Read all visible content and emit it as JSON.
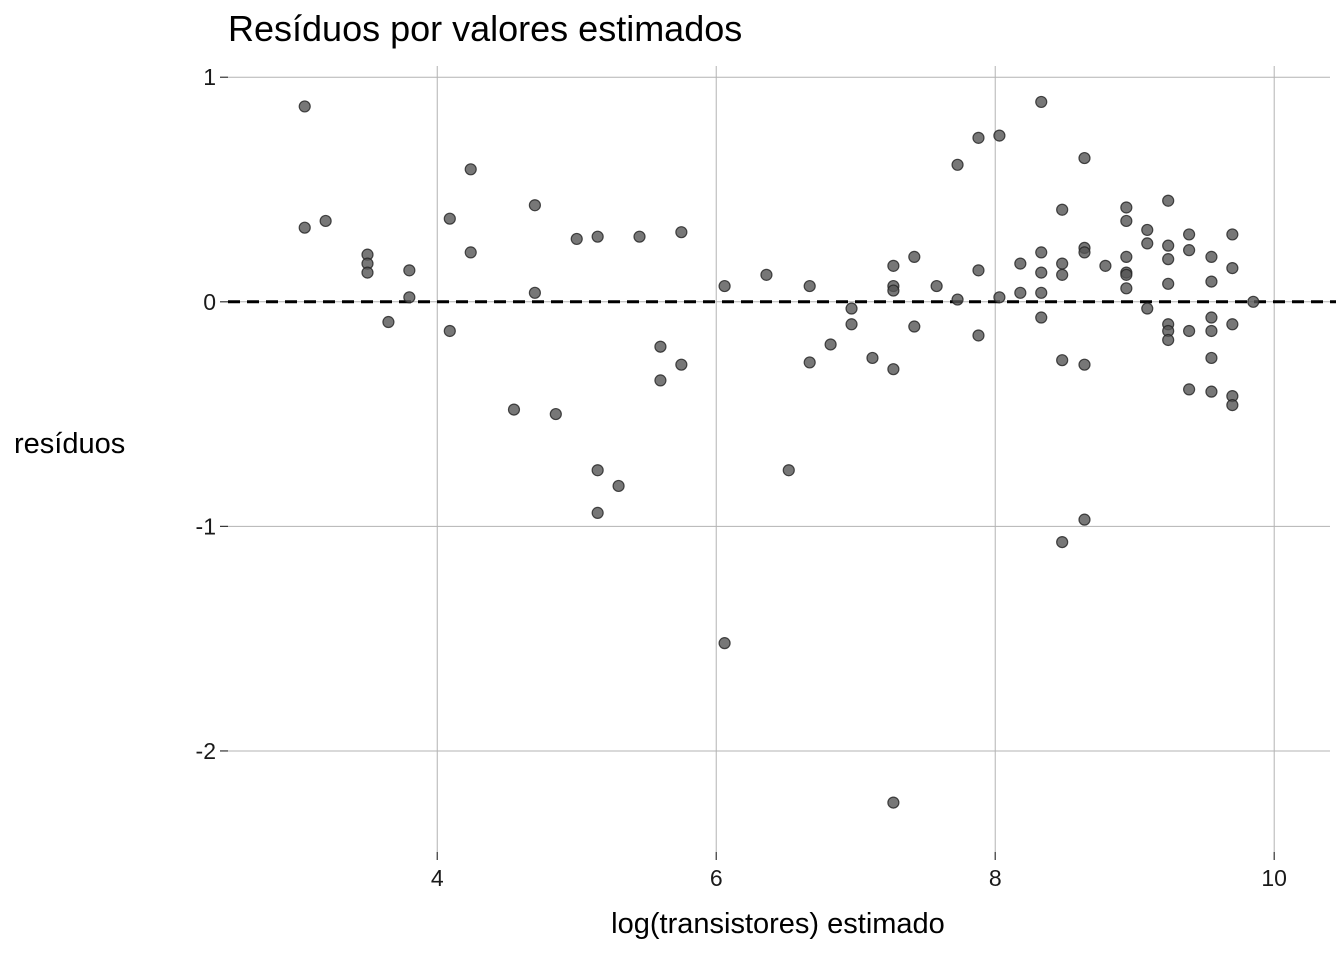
{
  "chart_data": {
    "type": "scatter",
    "title": "Resíduos por valores estimados",
    "xlabel": "log(transistores) estimado",
    "ylabel": "resíduos",
    "xlim": [
      2.5,
      10.4
    ],
    "ylim": [
      -2.45,
      1.05
    ],
    "x_ticks": [
      4,
      6,
      8,
      10
    ],
    "x_tick_labels": [
      "4",
      "6",
      "8",
      "10"
    ],
    "y_ticks": [
      1,
      0,
      -1,
      -2
    ],
    "y_tick_labels": [
      "1",
      "0",
      "-1",
      "-2"
    ],
    "grid": true,
    "reference_line": {
      "y": 0,
      "style": "dashed",
      "color": "#000000"
    },
    "point_color": "#555555",
    "points": [
      {
        "x": 3.05,
        "y": 0.87
      },
      {
        "x": 3.05,
        "y": 0.33
      },
      {
        "x": 3.2,
        "y": 0.36
      },
      {
        "x": 3.5,
        "y": 0.21
      },
      {
        "x": 3.5,
        "y": 0.17
      },
      {
        "x": 3.5,
        "y": 0.13
      },
      {
        "x": 3.65,
        "y": -0.09
      },
      {
        "x": 3.8,
        "y": 0.14
      },
      {
        "x": 3.8,
        "y": 0.02
      },
      {
        "x": 4.09,
        "y": 0.37
      },
      {
        "x": 4.09,
        "y": -0.13
      },
      {
        "x": 4.24,
        "y": 0.59
      },
      {
        "x": 4.24,
        "y": 0.22
      },
      {
        "x": 4.55,
        "y": -0.48
      },
      {
        "x": 4.7,
        "y": 0.43
      },
      {
        "x": 4.7,
        "y": 0.04
      },
      {
        "x": 4.85,
        "y": -0.5
      },
      {
        "x": 5.0,
        "y": 0.28
      },
      {
        "x": 5.15,
        "y": 0.29
      },
      {
        "x": 5.15,
        "y": -0.75
      },
      {
        "x": 5.15,
        "y": -0.94
      },
      {
        "x": 5.3,
        "y": -0.82
      },
      {
        "x": 5.45,
        "y": 0.29
      },
      {
        "x": 5.6,
        "y": -0.2
      },
      {
        "x": 5.6,
        "y": -0.35
      },
      {
        "x": 5.75,
        "y": 0.31
      },
      {
        "x": 5.75,
        "y": -0.28
      },
      {
        "x": 6.06,
        "y": 0.07
      },
      {
        "x": 6.06,
        "y": -1.52
      },
      {
        "x": 6.36,
        "y": 0.12
      },
      {
        "x": 6.52,
        "y": -0.75
      },
      {
        "x": 6.67,
        "y": 0.07
      },
      {
        "x": 6.67,
        "y": -0.27
      },
      {
        "x": 6.82,
        "y": -0.19
      },
      {
        "x": 6.97,
        "y": -0.03
      },
      {
        "x": 6.97,
        "y": -0.1
      },
      {
        "x": 7.12,
        "y": -0.25
      },
      {
        "x": 7.27,
        "y": 0.16
      },
      {
        "x": 7.27,
        "y": 0.07
      },
      {
        "x": 7.27,
        "y": 0.05
      },
      {
        "x": 7.27,
        "y": -0.3
      },
      {
        "x": 7.27,
        "y": -2.23
      },
      {
        "x": 7.42,
        "y": 0.2
      },
      {
        "x": 7.42,
        "y": -0.11
      },
      {
        "x": 7.58,
        "y": 0.07
      },
      {
        "x": 7.73,
        "y": 0.61
      },
      {
        "x": 7.73,
        "y": 0.01
      },
      {
        "x": 7.88,
        "y": 0.73
      },
      {
        "x": 7.88,
        "y": 0.14
      },
      {
        "x": 7.88,
        "y": -0.15
      },
      {
        "x": 8.03,
        "y": 0.74
      },
      {
        "x": 8.03,
        "y": 0.02
      },
      {
        "x": 8.18,
        "y": 0.17
      },
      {
        "x": 8.18,
        "y": 0.04
      },
      {
        "x": 8.33,
        "y": 0.89
      },
      {
        "x": 8.33,
        "y": 0.22
      },
      {
        "x": 8.33,
        "y": 0.13
      },
      {
        "x": 8.33,
        "y": 0.04
      },
      {
        "x": 8.33,
        "y": -0.07
      },
      {
        "x": 8.48,
        "y": 0.41
      },
      {
        "x": 8.48,
        "y": 0.17
      },
      {
        "x": 8.48,
        "y": 0.12
      },
      {
        "x": 8.48,
        "y": -0.26
      },
      {
        "x": 8.48,
        "y": -1.07
      },
      {
        "x": 8.64,
        "y": 0.64
      },
      {
        "x": 8.64,
        "y": 0.24
      },
      {
        "x": 8.64,
        "y": 0.22
      },
      {
        "x": 8.64,
        "y": -0.28
      },
      {
        "x": 8.64,
        "y": -0.97
      },
      {
        "x": 8.79,
        "y": 0.16
      },
      {
        "x": 8.94,
        "y": 0.42
      },
      {
        "x": 8.94,
        "y": 0.36
      },
      {
        "x": 8.94,
        "y": 0.2
      },
      {
        "x": 8.94,
        "y": 0.13
      },
      {
        "x": 8.94,
        "y": 0.12
      },
      {
        "x": 8.94,
        "y": 0.06
      },
      {
        "x": 9.09,
        "y": 0.32
      },
      {
        "x": 9.09,
        "y": 0.26
      },
      {
        "x": 9.09,
        "y": -0.03
      },
      {
        "x": 9.24,
        "y": 0.45
      },
      {
        "x": 9.24,
        "y": 0.25
      },
      {
        "x": 9.24,
        "y": 0.19
      },
      {
        "x": 9.24,
        "y": 0.08
      },
      {
        "x": 9.24,
        "y": -0.1
      },
      {
        "x": 9.24,
        "y": -0.13
      },
      {
        "x": 9.24,
        "y": -0.17
      },
      {
        "x": 9.39,
        "y": 0.3
      },
      {
        "x": 9.39,
        "y": 0.23
      },
      {
        "x": 9.39,
        "y": -0.13
      },
      {
        "x": 9.39,
        "y": -0.39
      },
      {
        "x": 9.55,
        "y": 0.2
      },
      {
        "x": 9.55,
        "y": 0.09
      },
      {
        "x": 9.55,
        "y": -0.07
      },
      {
        "x": 9.55,
        "y": -0.13
      },
      {
        "x": 9.55,
        "y": -0.25
      },
      {
        "x": 9.55,
        "y": -0.4
      },
      {
        "x": 9.7,
        "y": 0.3
      },
      {
        "x": 9.7,
        "y": 0.15
      },
      {
        "x": 9.7,
        "y": -0.1
      },
      {
        "x": 9.7,
        "y": -0.42
      },
      {
        "x": 9.7,
        "y": -0.46
      },
      {
        "x": 9.85,
        "y": 0.0
      }
    ]
  }
}
